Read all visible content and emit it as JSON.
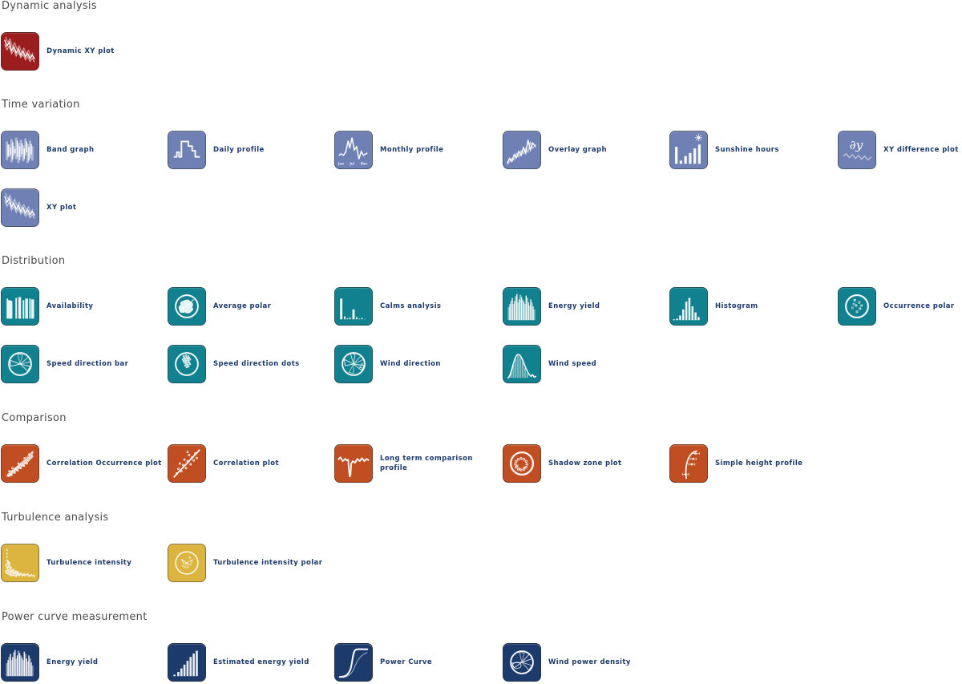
{
  "header_color": "#4b4b4b",
  "label_color": "#1e3a6a",
  "sections": [
    {
      "title": "Dynamic analysis",
      "color": "#9b1d1d",
      "items": [
        {
          "label": "Dynamic XY plot",
          "icon": "dynamic-xy-plot-icon"
        }
      ]
    },
    {
      "title": "Time variation",
      "color": "#6f81b4",
      "items": [
        {
          "label": "Band graph",
          "icon": "band-graph-icon"
        },
        {
          "label": "Daily profile",
          "icon": "daily-profile-icon"
        },
        {
          "label": "Monthly profile",
          "icon": "monthly-profile-icon",
          "icon_text": [
            "Jan",
            "Jul",
            "Dec"
          ]
        },
        {
          "label": "Overlay graph",
          "icon": "overlay-graph-icon"
        },
        {
          "label": "Sunshine hours",
          "icon": "sunshine-hours-icon"
        },
        {
          "label": "XY difference plot",
          "icon": "xy-difference-plot-icon",
          "icon_text": "∂y"
        },
        {
          "label": "XY plot",
          "icon": "xy-plot-icon"
        }
      ]
    },
    {
      "title": "Distribution",
      "color": "#11818f",
      "items": [
        {
          "label": "Availability",
          "icon": "availability-icon"
        },
        {
          "label": "Average polar",
          "icon": "average-polar-icon"
        },
        {
          "label": "Calms analysis",
          "icon": "calms-analysis-icon"
        },
        {
          "label": "Energy yield",
          "icon": "energy-yield-icon"
        },
        {
          "label": "Histogram",
          "icon": "histogram-icon"
        },
        {
          "label": "Occurrence polar",
          "icon": "occurrence-polar-icon"
        },
        {
          "label": "Speed direction bar",
          "icon": "speed-direction-bar-icon"
        },
        {
          "label": "Speed direction dots",
          "icon": "speed-direction-dots-icon"
        },
        {
          "label": "Wind direction",
          "icon": "wind-direction-icon"
        },
        {
          "label": "Wind speed",
          "icon": "wind-speed-icon"
        }
      ]
    },
    {
      "title": "Comparison",
      "color": "#c14e23",
      "items": [
        {
          "label": "Correlation Occurrence plot",
          "icon": "correlation-occurrence-plot-icon"
        },
        {
          "label": "Correlation plot",
          "icon": "correlation-plot-icon"
        },
        {
          "label": "Long term comparison profile",
          "icon": "long-term-comparison-profile-icon"
        },
        {
          "label": "Shadow zone plot",
          "icon": "shadow-zone-plot-icon"
        },
        {
          "label": "Simple height profile",
          "icon": "simple-height-profile-icon"
        }
      ]
    },
    {
      "title": "Turbulence analysis",
      "color": "#dcb440",
      "items": [
        {
          "label": "Turbulence intensity",
          "icon": "turbulence-intensity-icon"
        },
        {
          "label": "Turbulence intensity polar",
          "icon": "turbulence-intensity-polar-icon"
        }
      ]
    },
    {
      "title": "Power curve measurement",
      "color": "#1c3a6c",
      "items": [
        {
          "label": "Energy yield",
          "icon": "energy-yield-navy-icon"
        },
        {
          "label": "Estimated energy yield",
          "icon": "estimated-energy-yield-icon"
        },
        {
          "label": "Power Curve",
          "icon": "power-curve-icon"
        },
        {
          "label": "Wind power density",
          "icon": "wind-power-density-icon"
        }
      ]
    }
  ]
}
